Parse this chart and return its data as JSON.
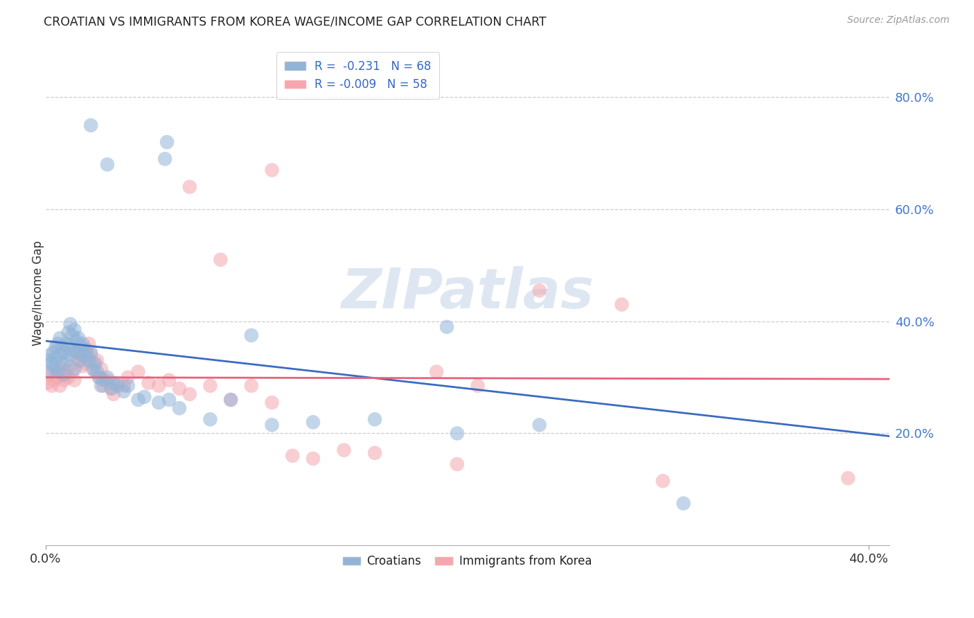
{
  "title": "CROATIAN VS IMMIGRANTS FROM KOREA WAGE/INCOME GAP CORRELATION CHART",
  "source": "Source: ZipAtlas.com",
  "ylabel": "Wage/Income Gap",
  "right_yticks": [
    "20.0%",
    "40.0%",
    "60.0%",
    "80.0%"
  ],
  "right_ytick_vals": [
    0.2,
    0.4,
    0.6,
    0.8
  ],
  "blue_color": "#92B4D8",
  "pink_color": "#F4A7B0",
  "trendline_blue": "#3A6BC0",
  "trendline_pink": "#E8607A",
  "watermark": "ZIPatlas",
  "blue_scatter": [
    [
      0.001,
      0.33
    ],
    [
      0.002,
      0.34
    ],
    [
      0.003,
      0.31
    ],
    [
      0.003,
      0.325
    ],
    [
      0.004,
      0.345
    ],
    [
      0.004,
      0.32
    ],
    [
      0.005,
      0.355
    ],
    [
      0.005,
      0.335
    ],
    [
      0.006,
      0.36
    ],
    [
      0.006,
      0.31
    ],
    [
      0.007,
      0.37
    ],
    [
      0.007,
      0.34
    ],
    [
      0.008,
      0.355
    ],
    [
      0.008,
      0.325
    ],
    [
      0.009,
      0.345
    ],
    [
      0.009,
      0.305
    ],
    [
      0.01,
      0.36
    ],
    [
      0.01,
      0.33
    ],
    [
      0.011,
      0.38
    ],
    [
      0.011,
      0.355
    ],
    [
      0.012,
      0.395
    ],
    [
      0.012,
      0.34
    ],
    [
      0.013,
      0.375
    ],
    [
      0.013,
      0.35
    ],
    [
      0.014,
      0.385
    ],
    [
      0.014,
      0.315
    ],
    [
      0.015,
      0.365
    ],
    [
      0.015,
      0.345
    ],
    [
      0.016,
      0.37
    ],
    [
      0.017,
      0.355
    ],
    [
      0.017,
      0.33
    ],
    [
      0.018,
      0.34
    ],
    [
      0.018,
      0.36
    ],
    [
      0.019,
      0.35
    ],
    [
      0.02,
      0.34
    ],
    [
      0.021,
      0.33
    ],
    [
      0.022,
      0.345
    ],
    [
      0.023,
      0.315
    ],
    [
      0.024,
      0.325
    ],
    [
      0.025,
      0.31
    ],
    [
      0.026,
      0.3
    ],
    [
      0.027,
      0.285
    ],
    [
      0.028,
      0.295
    ],
    [
      0.03,
      0.3
    ],
    [
      0.032,
      0.28
    ],
    [
      0.033,
      0.29
    ],
    [
      0.035,
      0.285
    ],
    [
      0.038,
      0.275
    ],
    [
      0.04,
      0.285
    ],
    [
      0.045,
      0.26
    ],
    [
      0.048,
      0.265
    ],
    [
      0.055,
      0.255
    ],
    [
      0.06,
      0.26
    ],
    [
      0.065,
      0.245
    ],
    [
      0.08,
      0.225
    ],
    [
      0.09,
      0.26
    ],
    [
      0.1,
      0.375
    ],
    [
      0.11,
      0.215
    ],
    [
      0.13,
      0.22
    ],
    [
      0.16,
      0.225
    ],
    [
      0.195,
      0.39
    ],
    [
      0.2,
      0.2
    ],
    [
      0.24,
      0.215
    ],
    [
      0.31,
      0.075
    ],
    [
      0.03,
      0.68
    ],
    [
      0.058,
      0.69
    ],
    [
      0.059,
      0.72
    ],
    [
      0.022,
      0.75
    ]
  ],
  "pink_scatter": [
    [
      0.001,
      0.29
    ],
    [
      0.002,
      0.305
    ],
    [
      0.003,
      0.285
    ],
    [
      0.004,
      0.295
    ],
    [
      0.005,
      0.31
    ],
    [
      0.006,
      0.3
    ],
    [
      0.007,
      0.315
    ],
    [
      0.007,
      0.285
    ],
    [
      0.008,
      0.305
    ],
    [
      0.009,
      0.295
    ],
    [
      0.01,
      0.31
    ],
    [
      0.011,
      0.3
    ],
    [
      0.012,
      0.32
    ],
    [
      0.013,
      0.31
    ],
    [
      0.014,
      0.295
    ],
    [
      0.015,
      0.345
    ],
    [
      0.016,
      0.33
    ],
    [
      0.017,
      0.34
    ],
    [
      0.018,
      0.32
    ],
    [
      0.019,
      0.325
    ],
    [
      0.02,
      0.35
    ],
    [
      0.021,
      0.36
    ],
    [
      0.022,
      0.34
    ],
    [
      0.023,
      0.325
    ],
    [
      0.024,
      0.31
    ],
    [
      0.025,
      0.33
    ],
    [
      0.026,
      0.3
    ],
    [
      0.027,
      0.315
    ],
    [
      0.028,
      0.285
    ],
    [
      0.03,
      0.295
    ],
    [
      0.032,
      0.28
    ],
    [
      0.033,
      0.27
    ],
    [
      0.035,
      0.29
    ],
    [
      0.038,
      0.285
    ],
    [
      0.04,
      0.3
    ],
    [
      0.045,
      0.31
    ],
    [
      0.05,
      0.29
    ],
    [
      0.055,
      0.285
    ],
    [
      0.06,
      0.295
    ],
    [
      0.065,
      0.28
    ],
    [
      0.07,
      0.27
    ],
    [
      0.08,
      0.285
    ],
    [
      0.09,
      0.26
    ],
    [
      0.1,
      0.285
    ],
    [
      0.11,
      0.255
    ],
    [
      0.12,
      0.16
    ],
    [
      0.13,
      0.155
    ],
    [
      0.145,
      0.17
    ],
    [
      0.16,
      0.165
    ],
    [
      0.19,
      0.31
    ],
    [
      0.2,
      0.145
    ],
    [
      0.21,
      0.285
    ],
    [
      0.24,
      0.455
    ],
    [
      0.28,
      0.43
    ],
    [
      0.3,
      0.115
    ],
    [
      0.39,
      0.12
    ],
    [
      0.07,
      0.64
    ],
    [
      0.085,
      0.51
    ],
    [
      0.11,
      0.67
    ]
  ],
  "xlim": [
    0.0,
    0.41
  ],
  "ylim": [
    0.0,
    0.9
  ],
  "xticks": [
    0.0,
    0.4
  ],
  "xtick_labels": [
    "0.0%",
    "40.0%"
  ],
  "blue_trend_x": [
    0.0,
    0.41
  ],
  "blue_trend_y": [
    0.365,
    0.195
  ],
  "pink_trend_x": [
    0.0,
    0.41
  ],
  "pink_trend_y": [
    0.3,
    0.297
  ]
}
